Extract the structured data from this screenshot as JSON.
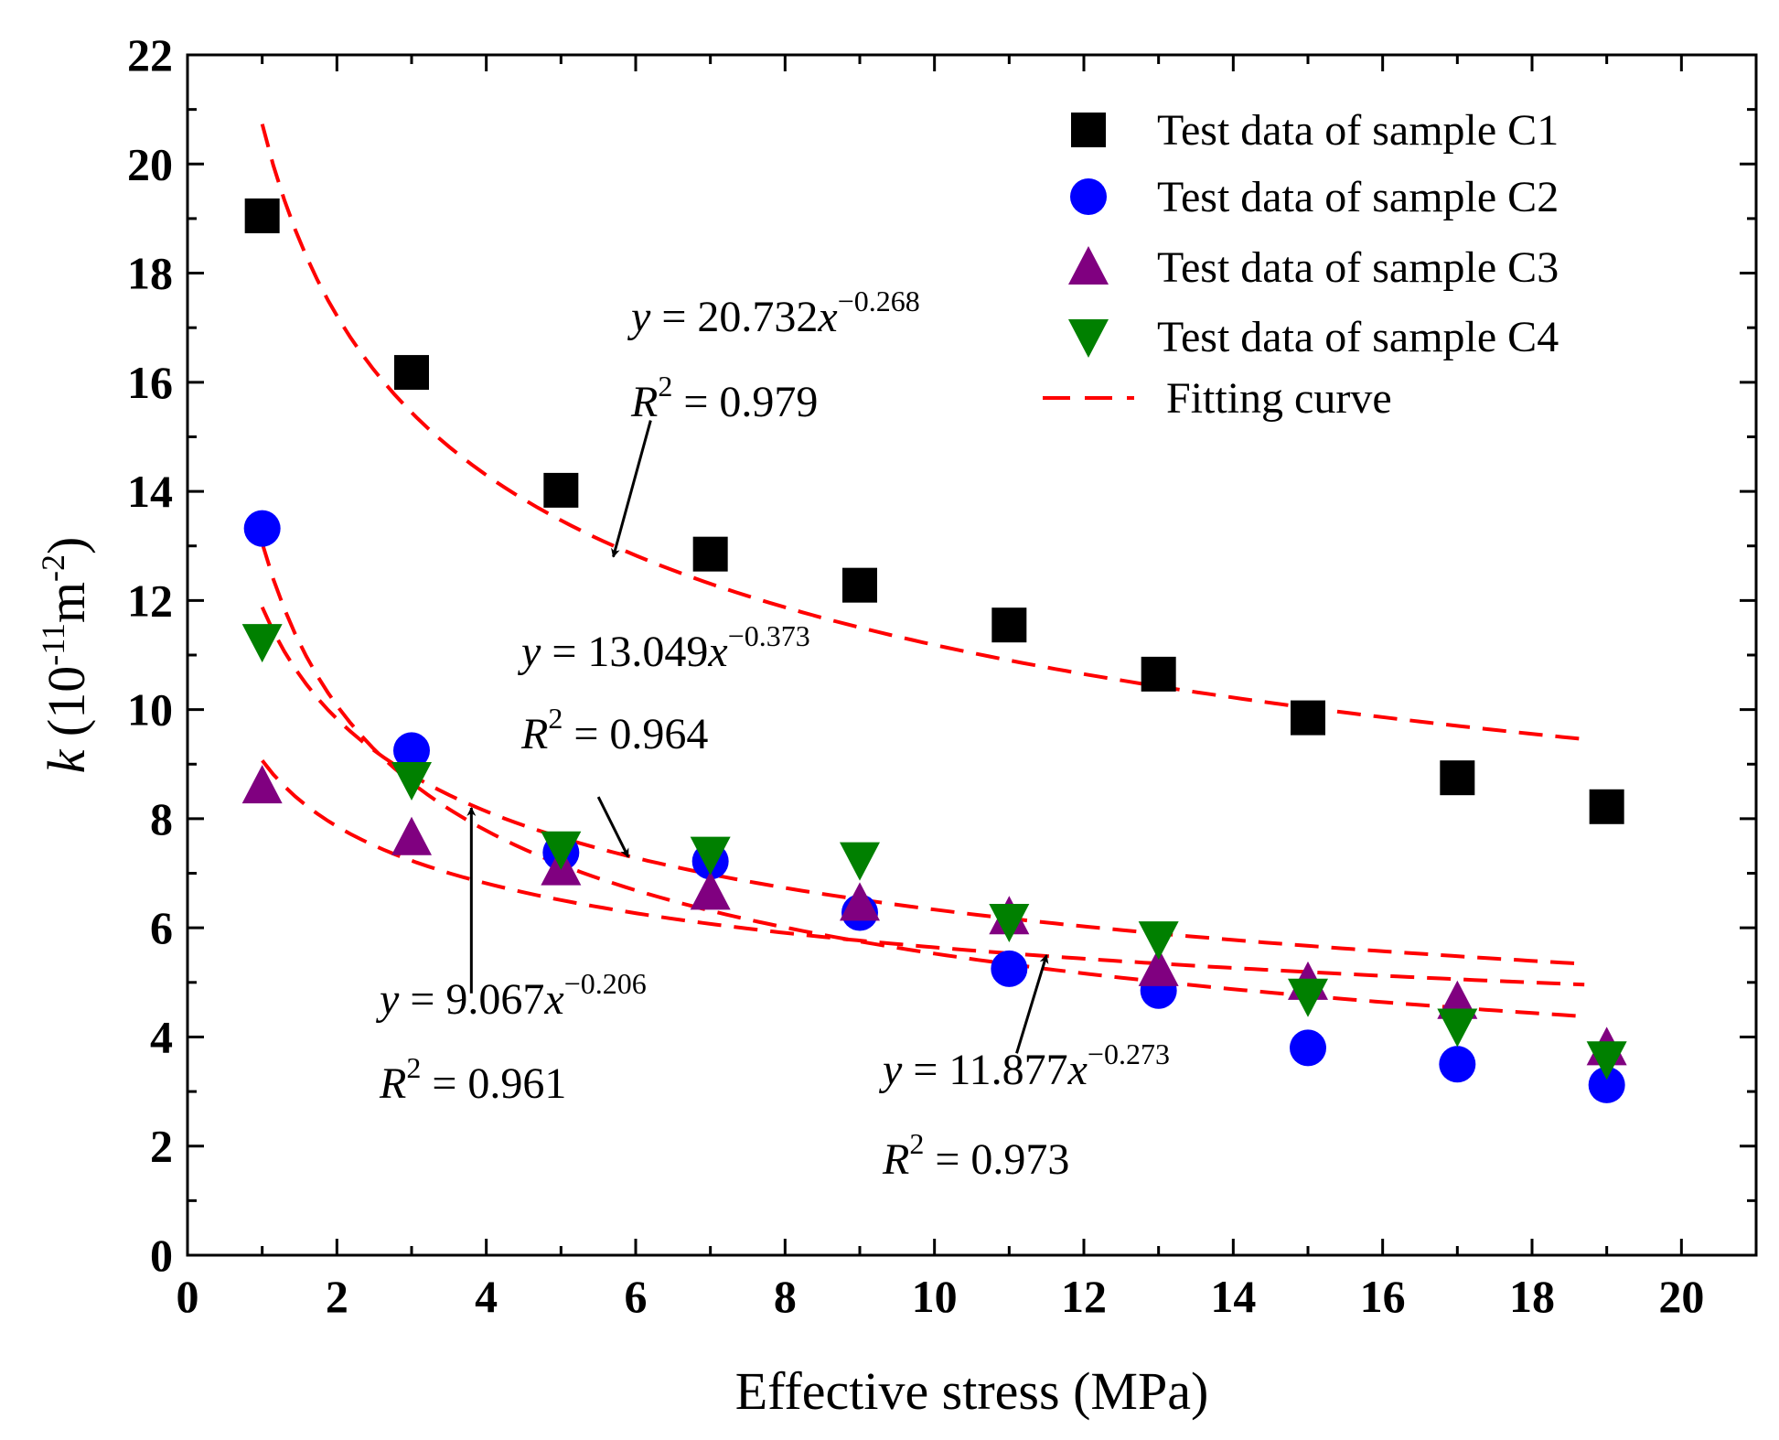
{
  "chart_data": {
    "type": "scatter",
    "title": "",
    "xlabel": "Effective stress (MPa)",
    "ylabel_var": "k",
    "ylabel_open": " (10",
    "ylabel_exp1": "-11",
    "ylabel_unit": "m",
    "ylabel_exp2": "-2",
    "ylabel_close": ")",
    "xlim": [
      0,
      21
    ],
    "ylim": [
      0,
      22
    ],
    "x_ticks": [
      0,
      2,
      4,
      6,
      8,
      10,
      12,
      14,
      16,
      18,
      20
    ],
    "y_ticks": [
      0,
      2,
      4,
      6,
      8,
      10,
      12,
      14,
      16,
      18,
      20,
      22
    ],
    "x_tick_labels": [
      "0",
      "2",
      "4",
      "6",
      "8",
      "10",
      "12",
      "14",
      "16",
      "18",
      "20"
    ],
    "y_tick_labels": [
      "0",
      "2",
      "4",
      "6",
      "8",
      "10",
      "12",
      "14",
      "16",
      "18",
      "20",
      "22"
    ],
    "legend_position": "top-right",
    "series": [
      {
        "name": "Test data of sample C1",
        "marker": "square",
        "color": "#000000",
        "x": [
          1,
          3,
          5,
          7,
          9,
          11,
          13,
          15,
          17,
          19
        ],
        "values": [
          19.05,
          16.18,
          14.02,
          12.85,
          12.28,
          11.55,
          10.65,
          9.85,
          8.75,
          8.22
        ]
      },
      {
        "name": "Test data of sample C2",
        "marker": "circle",
        "color": "#0000ff",
        "x": [
          1,
          3,
          5,
          7,
          9,
          11,
          13,
          15,
          17,
          19
        ],
        "values": [
          13.32,
          9.25,
          7.38,
          7.22,
          6.28,
          5.25,
          4.85,
          3.8,
          3.5,
          3.12
        ]
      },
      {
        "name": "Test data of sample C3",
        "marker": "triangle-up",
        "color": "#800080",
        "x": [
          1,
          3,
          5,
          7,
          9,
          11,
          13,
          15,
          17,
          19
        ],
        "values": [
          8.6,
          7.65,
          7.1,
          6.65,
          6.45,
          6.2,
          5.25,
          5.0,
          4.65,
          3.8
        ]
      },
      {
        "name": "Test data of sample C4",
        "marker": "triangle-down",
        "color": "#008000",
        "x": [
          1,
          3,
          5,
          7,
          9,
          11,
          13,
          15,
          17,
          19
        ],
        "values": [
          11.25,
          8.72,
          7.45,
          7.35,
          7.25,
          6.12,
          5.8,
          4.75,
          4.2,
          3.6
        ]
      }
    ],
    "fits": [
      {
        "name": "C1 fit",
        "a": 20.732,
        "b": -0.268,
        "x_range": [
          1,
          18.7
        ]
      },
      {
        "name": "C2 fit",
        "a": 13.049,
        "b": -0.373,
        "x_range": [
          1,
          18.7
        ]
      },
      {
        "name": "C3 fit",
        "a": 9.067,
        "b": -0.206,
        "x_range": [
          1,
          18.7
        ]
      },
      {
        "name": "C4 fit",
        "a": 11.877,
        "b": -0.273,
        "x_range": [
          1,
          18.7
        ]
      }
    ],
    "fit_legend_label": "Fitting curve",
    "fit_color": "#ff0000",
    "annotations": [
      {
        "id": "c1",
        "coef": "20.732",
        "exp": "−0.268",
        "r2": "0.979",
        "arrow_from": [
          6.2,
          15.3
        ],
        "arrow_to": [
          5.7,
          12.8
        ]
      },
      {
        "id": "c2",
        "coef": "13.049",
        "exp": "−0.373",
        "r2": "0.964",
        "arrow_from": [
          5.5,
          8.4
        ],
        "arrow_to": [
          5.9,
          7.3
        ]
      },
      {
        "id": "c3",
        "coef": "9.067",
        "exp": "−0.206",
        "r2": "0.961",
        "arrow_from": [
          3.8,
          4.8
        ],
        "arrow_to": [
          3.8,
          8.2
        ]
      },
      {
        "id": "c4",
        "coef": "11.877",
        "exp": "−0.273",
        "r2": "0.973",
        "arrow_from": [
          11.1,
          3.7
        ],
        "arrow_to": [
          11.5,
          5.5
        ]
      }
    ],
    "eq_y": "y",
    "eq_equals": " = ",
    "eq_x": "x",
    "r2_r": "R",
    "r2_sup": "2",
    "r2_equals": " = "
  }
}
